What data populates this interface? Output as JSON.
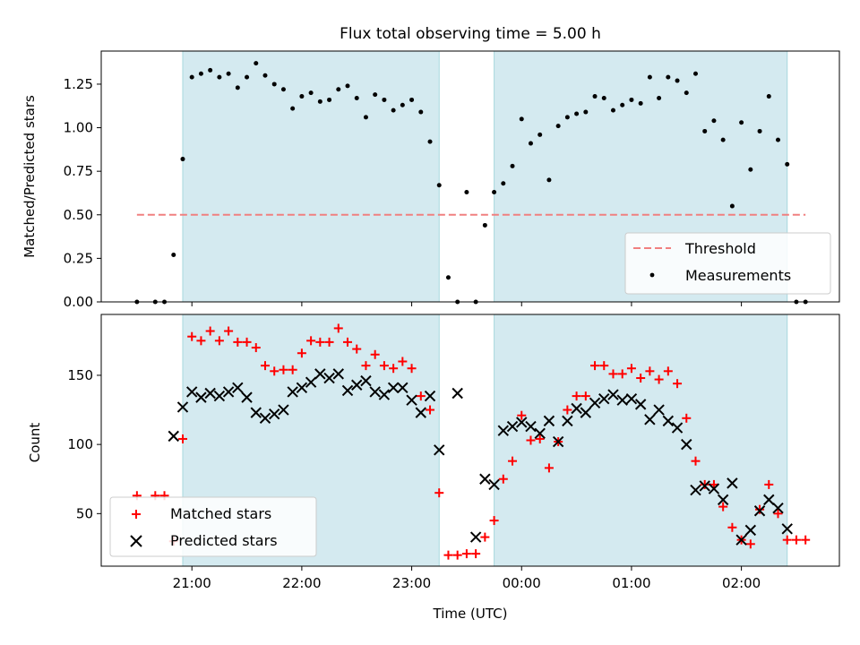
{
  "figure": {
    "title": "Flux total observing time = 5.00 h",
    "xlabel": "Time (UTC)",
    "x_ticks": [
      "21:00",
      "22:00",
      "23:00",
      "00:00",
      "01:00",
      "02:00"
    ],
    "shaded_intervals": [
      [
        "20:55",
        "23:15"
      ],
      [
        "23:45",
        "02:25"
      ]
    ],
    "shade_color": "#d4eaf0"
  },
  "chart_data": [
    {
      "type": "scatter",
      "title": "Flux total observing time = 5.00 h",
      "ylabel": "Matched/Predicted stars",
      "ylim": [
        0,
        1.44
      ],
      "y_ticks": [
        "0.00",
        "0.25",
        "0.50",
        "0.75",
        "1.00",
        "1.25"
      ],
      "threshold": {
        "name": "Threshold",
        "value": 0.5,
        "x_range": [
          "20:30",
          "02:35"
        ],
        "color": "#f08080"
      },
      "legend_position": "lower-right",
      "series": [
        {
          "name": "Measurements",
          "marker": "dot",
          "color": "#000000",
          "points": [
            [
              "20:30",
              0.0
            ],
            [
              "20:40",
              0.0
            ],
            [
              "20:45",
              0.0
            ],
            [
              "20:50",
              0.27
            ],
            [
              "20:55",
              0.82
            ],
            [
              "21:00",
              1.29
            ],
            [
              "21:05",
              1.31
            ],
            [
              "21:10",
              1.33
            ],
            [
              "21:15",
              1.29
            ],
            [
              "21:20",
              1.31
            ],
            [
              "21:25",
              1.23
            ],
            [
              "21:30",
              1.29
            ],
            [
              "21:35",
              1.37
            ],
            [
              "21:40",
              1.3
            ],
            [
              "21:45",
              1.25
            ],
            [
              "21:50",
              1.22
            ],
            [
              "21:55",
              1.11
            ],
            [
              "22:00",
              1.18
            ],
            [
              "22:05",
              1.2
            ],
            [
              "22:10",
              1.15
            ],
            [
              "22:15",
              1.16
            ],
            [
              "22:20",
              1.22
            ],
            [
              "22:25",
              1.24
            ],
            [
              "22:30",
              1.17
            ],
            [
              "22:35",
              1.06
            ],
            [
              "22:40",
              1.19
            ],
            [
              "22:45",
              1.16
            ],
            [
              "22:50",
              1.1
            ],
            [
              "22:55",
              1.13
            ],
            [
              "23:00",
              1.16
            ],
            [
              "23:05",
              1.09
            ],
            [
              "23:10",
              0.92
            ],
            [
              "23:15",
              0.67
            ],
            [
              "23:20",
              0.14
            ],
            [
              "23:25",
              0.0
            ],
            [
              "23:30",
              0.63
            ],
            [
              "23:35",
              0.0
            ],
            [
              "23:40",
              0.44
            ],
            [
              "23:45",
              0.63
            ],
            [
              "23:50",
              0.68
            ],
            [
              "23:55",
              0.78
            ],
            [
              "00:00",
              1.05
            ],
            [
              "00:05",
              0.91
            ],
            [
              "00:10",
              0.96
            ],
            [
              "00:15",
              0.7
            ],
            [
              "00:20",
              1.01
            ],
            [
              "00:25",
              1.06
            ],
            [
              "00:30",
              1.08
            ],
            [
              "00:35",
              1.09
            ],
            [
              "00:40",
              1.18
            ],
            [
              "00:45",
              1.17
            ],
            [
              "00:50",
              1.1
            ],
            [
              "00:55",
              1.13
            ],
            [
              "01:00",
              1.16
            ],
            [
              "01:05",
              1.14
            ],
            [
              "01:10",
              1.29
            ],
            [
              "01:15",
              1.17
            ],
            [
              "01:20",
              1.29
            ],
            [
              "01:25",
              1.27
            ],
            [
              "01:30",
              1.2
            ],
            [
              "01:35",
              1.31
            ],
            [
              "01:40",
              0.98
            ],
            [
              "01:45",
              1.04
            ],
            [
              "01:50",
              0.93
            ],
            [
              "01:55",
              0.55
            ],
            [
              "02:00",
              1.03
            ],
            [
              "02:05",
              0.76
            ],
            [
              "02:10",
              0.98
            ],
            [
              "02:15",
              1.18
            ],
            [
              "02:20",
              0.93
            ],
            [
              "02:25",
              0.79
            ],
            [
              "02:30",
              0.0
            ],
            [
              "02:35",
              0.0
            ]
          ]
        }
      ]
    },
    {
      "type": "scatter",
      "ylabel": "Count",
      "ylim": [
        12,
        194
      ],
      "y_ticks": [
        "50",
        "100",
        "150"
      ],
      "legend_position": "lower-left",
      "series": [
        {
          "name": "Matched stars",
          "marker": "plus",
          "color": "#ff0000",
          "points": [
            [
              "20:30",
              63
            ],
            [
              "20:40",
              63
            ],
            [
              "20:45",
              63
            ],
            [
              "20:50",
              30
            ],
            [
              "20:55",
              104
            ],
            [
              "21:00",
              178
            ],
            [
              "21:05",
              175
            ],
            [
              "21:10",
              182
            ],
            [
              "21:15",
              175
            ],
            [
              "21:20",
              182
            ],
            [
              "21:25",
              174
            ],
            [
              "21:30",
              174
            ],
            [
              "21:35",
              170
            ],
            [
              "21:40",
              157
            ],
            [
              "21:45",
              153
            ],
            [
              "21:50",
              154
            ],
            [
              "21:55",
              154
            ],
            [
              "22:00",
              166
            ],
            [
              "22:05",
              175
            ],
            [
              "22:10",
              174
            ],
            [
              "22:15",
              174
            ],
            [
              "22:20",
              184
            ],
            [
              "22:25",
              174
            ],
            [
              "22:30",
              169
            ],
            [
              "22:35",
              157
            ],
            [
              "22:40",
              165
            ],
            [
              "22:45",
              157
            ],
            [
              "22:50",
              155
            ],
            [
              "22:55",
              160
            ],
            [
              "23:00",
              155
            ],
            [
              "23:05",
              135
            ],
            [
              "23:10",
              125
            ],
            [
              "23:15",
              65
            ],
            [
              "23:20",
              20
            ],
            [
              "23:25",
              20
            ],
            [
              "23:30",
              21
            ],
            [
              "23:35",
              21
            ],
            [
              "23:40",
              33
            ],
            [
              "23:45",
              45
            ],
            [
              "23:50",
              75
            ],
            [
              "23:55",
              88
            ],
            [
              "00:00",
              121
            ],
            [
              "00:05",
              103
            ],
            [
              "00:10",
              104
            ],
            [
              "00:15",
              83
            ],
            [
              "00:20",
              102
            ],
            [
              "00:25",
              125
            ],
            [
              "00:30",
              135
            ],
            [
              "00:35",
              135
            ],
            [
              "00:40",
              157
            ],
            [
              "00:45",
              157
            ],
            [
              "00:50",
              151
            ],
            [
              "00:55",
              151
            ],
            [
              "01:00",
              155
            ],
            [
              "01:05",
              148
            ],
            [
              "01:10",
              153
            ],
            [
              "01:15",
              147
            ],
            [
              "01:20",
              153
            ],
            [
              "01:25",
              144
            ],
            [
              "01:30",
              119
            ],
            [
              "01:35",
              88
            ],
            [
              "01:40",
              71
            ],
            [
              "01:45",
              71
            ],
            [
              "01:50",
              55
            ],
            [
              "01:55",
              40
            ],
            [
              "02:00",
              31
            ],
            [
              "02:05",
              28
            ],
            [
              "02:10",
              53
            ],
            [
              "02:15",
              71
            ],
            [
              "02:20",
              50
            ],
            [
              "02:25",
              31
            ],
            [
              "02:30",
              31
            ],
            [
              "02:35",
              31
            ]
          ]
        },
        {
          "name": "Predicted stars",
          "marker": "x",
          "color": "#000000",
          "points": [
            [
              "20:50",
              106
            ],
            [
              "20:55",
              127
            ],
            [
              "21:00",
              138
            ],
            [
              "21:05",
              134
            ],
            [
              "21:10",
              137
            ],
            [
              "21:15",
              135
            ],
            [
              "21:20",
              138
            ],
            [
              "21:25",
              141
            ],
            [
              "21:30",
              134
            ],
            [
              "21:35",
              123
            ],
            [
              "21:40",
              119
            ],
            [
              "21:45",
              122
            ],
            [
              "21:50",
              125
            ],
            [
              "21:55",
              138
            ],
            [
              "22:00",
              141
            ],
            [
              "22:05",
              145
            ],
            [
              "22:10",
              151
            ],
            [
              "22:15",
              148
            ],
            [
              "22:20",
              151
            ],
            [
              "22:25",
              139
            ],
            [
              "22:30",
              143
            ],
            [
              "22:35",
              146
            ],
            [
              "22:40",
              138
            ],
            [
              "22:45",
              136
            ],
            [
              "22:50",
              141
            ],
            [
              "22:55",
              141
            ],
            [
              "23:00",
              132
            ],
            [
              "23:05",
              123
            ],
            [
              "23:10",
              135
            ],
            [
              "23:15",
              96
            ],
            [
              "23:25",
              137
            ],
            [
              "23:35",
              33
            ],
            [
              "23:40",
              75
            ],
            [
              "23:45",
              71
            ],
            [
              "23:50",
              110
            ],
            [
              "23:55",
              113
            ],
            [
              "00:00",
              116
            ],
            [
              "00:05",
              113
            ],
            [
              "00:10",
              108
            ],
            [
              "00:15",
              117
            ],
            [
              "00:20",
              102
            ],
            [
              "00:25",
              117
            ],
            [
              "00:30",
              126
            ],
            [
              "00:35",
              123
            ],
            [
              "00:40",
              130
            ],
            [
              "00:45",
              133
            ],
            [
              "00:50",
              136
            ],
            [
              "00:55",
              132
            ],
            [
              "01:00",
              133
            ],
            [
              "01:05",
              129
            ],
            [
              "01:10",
              118
            ],
            [
              "01:15",
              125
            ],
            [
              "01:20",
              117
            ],
            [
              "01:25",
              112
            ],
            [
              "01:30",
              100
            ],
            [
              "01:35",
              67
            ],
            [
              "01:40",
              70
            ],
            [
              "01:45",
              68
            ],
            [
              "01:50",
              60
            ],
            [
              "01:55",
              72
            ],
            [
              "02:00",
              31
            ],
            [
              "02:05",
              38
            ],
            [
              "02:10",
              52
            ],
            [
              "02:15",
              60
            ],
            [
              "02:20",
              54
            ],
            [
              "02:25",
              39
            ]
          ]
        }
      ]
    }
  ]
}
